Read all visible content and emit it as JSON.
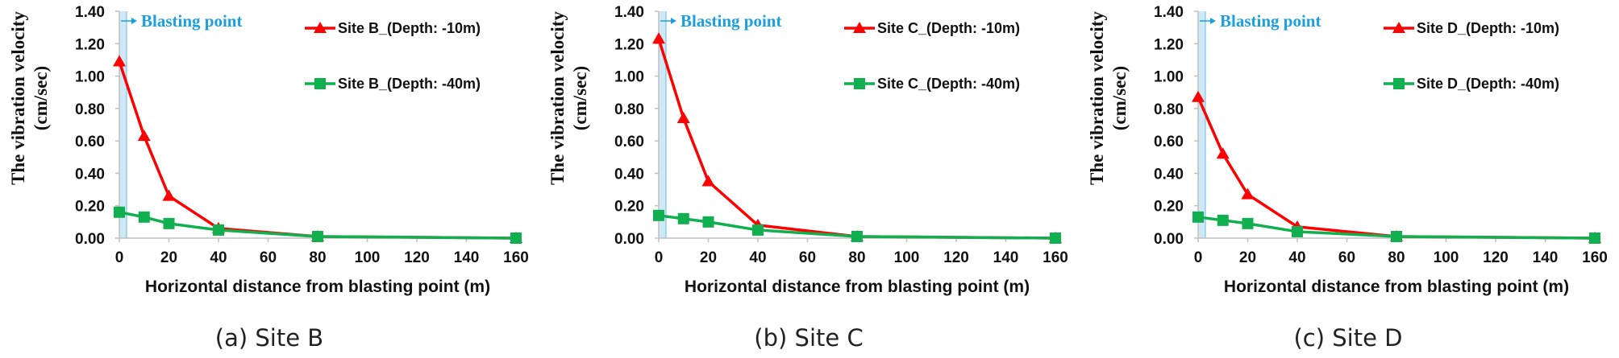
{
  "chart_data": [
    {
      "type": "line",
      "caption": "(a) Site B",
      "annotation": "Blasting point",
      "xlabel": "Horizontal distance from blasting point (m)",
      "ylabel": [
        "The vibration velocity",
        "(cm/sec)"
      ],
      "x_ticks": [
        0,
        20,
        40,
        60,
        80,
        100,
        120,
        140,
        160
      ],
      "y_ticks": [
        "0.00",
        "0.20",
        "0.40",
        "0.60",
        "0.80",
        "1.00",
        "1.20",
        "1.40"
      ],
      "xlim": [
        0,
        160
      ],
      "ylim": [
        0,
        1.4
      ],
      "grid": false,
      "legend_position": "top-right",
      "series": [
        {
          "name": "Site B_(Depth: -10m)",
          "color": "#ff0000",
          "marker": "triangle",
          "x": [
            0,
            10,
            20,
            40,
            80,
            160
          ],
          "y": [
            1.09,
            0.63,
            0.26,
            0.06,
            0.01,
            0.0
          ]
        },
        {
          "name": "Site B_(Depth: -40m)",
          "color": "#10b050",
          "marker": "square",
          "x": [
            0,
            10,
            20,
            40,
            80,
            160
          ],
          "y": [
            0.16,
            0.13,
            0.09,
            0.05,
            0.01,
            0.0
          ]
        }
      ]
    },
    {
      "type": "line",
      "caption": "(b) Site C",
      "annotation": "Blasting point",
      "xlabel": "Horizontal distance from blasting point (m)",
      "ylabel": [
        "The vibration velocity",
        "(cm/sec)"
      ],
      "x_ticks": [
        0,
        20,
        40,
        60,
        80,
        100,
        120,
        140,
        160
      ],
      "y_ticks": [
        "0.00",
        "0.20",
        "0.40",
        "0.60",
        "0.80",
        "1.00",
        "1.20",
        "1.40"
      ],
      "xlim": [
        0,
        160
      ],
      "ylim": [
        0,
        1.4
      ],
      "grid": false,
      "legend_position": "top-right",
      "series": [
        {
          "name": "Site C_(Depth: -10m)",
          "color": "#ff0000",
          "marker": "triangle",
          "x": [
            0,
            10,
            20,
            40,
            80,
            160
          ],
          "y": [
            1.23,
            0.74,
            0.35,
            0.08,
            0.01,
            0.0
          ]
        },
        {
          "name": "Site C_(Depth: -40m)",
          "color": "#10b050",
          "marker": "square",
          "x": [
            0,
            10,
            20,
            40,
            80,
            160
          ],
          "y": [
            0.14,
            0.12,
            0.1,
            0.05,
            0.01,
            0.0
          ]
        }
      ]
    },
    {
      "type": "line",
      "caption": "(c) Site D",
      "annotation": "Blasting point",
      "xlabel": "Horizontal distance from blasting point (m)",
      "ylabel": [
        "The vibration velocity",
        "(cm/sec)"
      ],
      "x_ticks": [
        0,
        20,
        40,
        60,
        80,
        100,
        120,
        140,
        160
      ],
      "y_ticks": [
        "0.00",
        "0.20",
        "0.40",
        "0.60",
        "0.80",
        "1.00",
        "1.20",
        "1.40"
      ],
      "xlim": [
        0,
        160
      ],
      "ylim": [
        0,
        1.4
      ],
      "grid": false,
      "legend_position": "top-right",
      "series": [
        {
          "name": "Site D_(Depth: -10m)",
          "color": "#ff0000",
          "marker": "triangle",
          "x": [
            0,
            10,
            20,
            40,
            80,
            160
          ],
          "y": [
            0.87,
            0.52,
            0.27,
            0.07,
            0.01,
            0.0
          ]
        },
        {
          "name": "Site D_(Depth: -40m)",
          "color": "#10b050",
          "marker": "square",
          "x": [
            0,
            10,
            20,
            40,
            80,
            160
          ],
          "y": [
            0.13,
            0.11,
            0.09,
            0.04,
            0.01,
            0.0
          ]
        }
      ]
    }
  ],
  "colors": {
    "axis": "#bfbfbf",
    "blast_band": "#cfe8f6",
    "blast_edge": "#6fb8e0",
    "annotation": "#1a9fe0"
  }
}
